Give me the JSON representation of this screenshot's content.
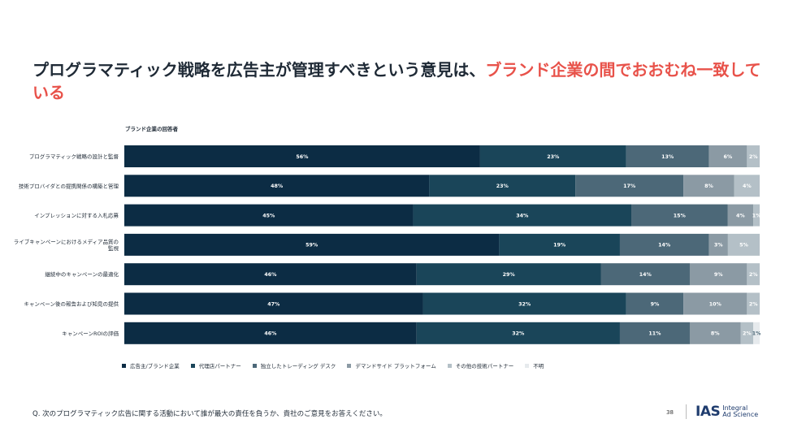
{
  "slide": {
    "title_main": "プログラマティック戦略を広告主が管理すべきという意見は、",
    "title_highlight": "ブランド企業の間でおおむね一致している",
    "respondents_label": "ブランド企業の回答者",
    "footnote": "Q. 次のプログラマティック広告に関する活動において誰が最大の責任を負うか、貴社のご意見をお答えください。",
    "page_number": "38",
    "logo_mark": "IAS",
    "logo_line1": "Integral",
    "logo_line2": "Ad Science"
  },
  "colors": {
    "title_highlight": "#e8524a",
    "series": [
      "#0c2c44",
      "#1a4559",
      "#4c6878",
      "#8b9aa4",
      "#b4c0c7",
      "#e6eaed"
    ]
  },
  "chart_data": {
    "type": "bar",
    "orientation": "horizontal",
    "stacked": true,
    "percent": true,
    "categories": [
      "プログラマティック戦略の設計と監督",
      "技術プロバイダとの提携関係の構築と管理",
      "インプレッションに対する入札応募",
      "ライブキャンペーンにおけるメディア品質の監視",
      "継続中のキャンペーンの最適化",
      "キャンペーン後の報告および知見の提供",
      "キャンペーンROIの評価"
    ],
    "series": [
      {
        "name": "広告主/ブランド企業",
        "values": [
          56,
          48,
          45,
          59,
          46,
          47,
          46
        ]
      },
      {
        "name": "代理店パートナー",
        "values": [
          23,
          23,
          34,
          19,
          29,
          32,
          32
        ]
      },
      {
        "name": "独立したトレーディング デスク",
        "values": [
          13,
          17,
          15,
          14,
          14,
          9,
          11
        ]
      },
      {
        "name": "デマンドサイド プラットフォーム",
        "values": [
          6,
          8,
          4,
          3,
          9,
          10,
          8
        ]
      },
      {
        "name": "その他の技術パートナー",
        "values": [
          2,
          4,
          1,
          5,
          2,
          2,
          2
        ]
      },
      {
        "name": "不明",
        "values": [
          0,
          0,
          0,
          0,
          0,
          0,
          1
        ]
      }
    ],
    "value_labels": [
      [
        "56%",
        "23%",
        "13%",
        "6%",
        "2%",
        ""
      ],
      [
        "48%",
        "23%",
        "17%",
        "8%",
        "4%",
        ""
      ],
      [
        "45%",
        "34%",
        "15%",
        "4%",
        "1%",
        ""
      ],
      [
        "59%",
        "19%",
        "14%",
        "3%",
        "5%",
        ""
      ],
      [
        "46%",
        "29%",
        "14%",
        "9%",
        "2%",
        ""
      ],
      [
        "47%",
        "32%",
        "9%",
        "10%",
        "2%",
        ""
      ],
      [
        "46%",
        "32%",
        "11%",
        "8%",
        "2%",
        "1%"
      ]
    ],
    "legend_position": "bottom",
    "grid": false
  }
}
